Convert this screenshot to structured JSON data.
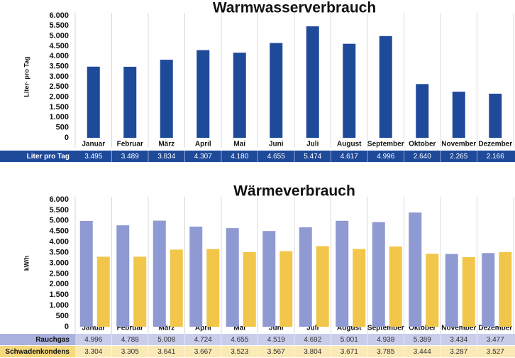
{
  "chart_data": [
    {
      "type": "bar",
      "title": "Warmwasserverbrauch",
      "y_label": "Liter· pro Tag",
      "categories": [
        "Januar",
        "Februar",
        "März",
        "April",
        "Mai",
        "Juni",
        "Juli",
        "August",
        "September",
        "Oktober",
        "November",
        "Dezember"
      ],
      "series": [
        {
          "name": "Liter pro Tag",
          "color": "#1f4a9a",
          "values": [
            3495,
            3489,
            3834,
            4307,
            4180,
            4655,
            5474,
            4617,
            4996,
            2640,
            2265,
            2166
          ],
          "value_labels": [
            "3.495",
            "3.489",
            "3.834",
            "4.307",
            "4.180",
            "4.655",
            "5.474",
            "4.617",
            "4.996",
            "2.640",
            "2.265",
            "2.166"
          ]
        }
      ],
      "ylim": [
        0,
        6000
      ],
      "yticks": [
        0,
        500,
        {
          "value": 1000,
          "label": "1.000"
        },
        {
          "value": 1500,
          "label": "1.500"
        },
        {
          "value": 2000,
          "label": "2.000"
        },
        {
          "value": 2500,
          "label": "2.500"
        },
        {
          "value": 3000,
          "label": "3.000"
        },
        {
          "value": 3500,
          "label": "3.500"
        },
        {
          "value": 4000,
          "label": "4.000"
        },
        {
          "value": 4500,
          "label": "4.500"
        },
        {
          "value": 5000,
          "label": "5.000"
        },
        {
          "value": 5500,
          "label": "5.500"
        },
        {
          "value": 6000,
          "label": "6.000"
        }
      ],
      "grid": false
    },
    {
      "type": "bar",
      "title": "Wärmeverbrauch",
      "y_label": "kW/h",
      "categories": [
        "Januar",
        "Februar",
        "März",
        "April",
        "Mai",
        "Juni",
        "Juli",
        "August",
        "September",
        "Oktober",
        "November",
        "Dezember"
      ],
      "series": [
        {
          "name": "Rauchgas",
          "color": "#8f9ad2",
          "values": [
            4996,
            4788,
            5008,
            4724,
            4655,
            4519,
            4692,
            5001,
            4938,
            5389,
            3434,
            3477
          ],
          "value_labels": [
            "4.996",
            "4.788",
            "5.008",
            "4.724",
            "4.655",
            "4.519",
            "4.692",
            "5.001",
            "4.938",
            "5.389",
            "3.434",
            "3.477"
          ]
        },
        {
          "name": "Schwadenkondens",
          "color": "#f1c64a",
          "values": [
            3304,
            3305,
            3641,
            3667,
            3523,
            3567,
            3804,
            3671,
            3785,
            3444,
            3287,
            3527
          ],
          "value_labels": [
            "3.304",
            "3.305",
            "3.641",
            "3.667",
            "3.523",
            "3.567",
            "3.804",
            "3.671",
            "3.785",
            "3.444",
            "3.287",
            "3.527"
          ]
        }
      ],
      "ylim": [
        0,
        6000
      ],
      "yticks": [
        0,
        500,
        {
          "value": 1000,
          "label": "1.000"
        },
        {
          "value": 1500,
          "label": "1.500"
        },
        {
          "value": 2000,
          "label": "2.000"
        },
        {
          "value": 2500,
          "label": "2.500"
        },
        {
          "value": 3000,
          "label": "3.000"
        },
        {
          "value": 3500,
          "label": "3.500"
        },
        {
          "value": 4000,
          "label": "4.000"
        },
        {
          "value": 4500,
          "label": "4.500"
        },
        {
          "value": 5000,
          "label": "5.000"
        },
        {
          "value": 5500,
          "label": "5.500"
        },
        {
          "value": 6000,
          "label": "6.000"
        }
      ],
      "grid": false
    }
  ]
}
